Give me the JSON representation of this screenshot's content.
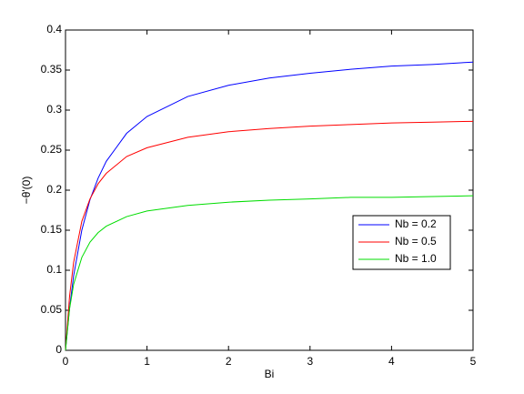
{
  "chart_data": {
    "type": "line",
    "x_label": "Bi",
    "y_label": "−θ'(0)",
    "x": [
      0,
      0.05,
      0.1,
      0.2,
      0.3,
      0.4,
      0.5,
      0.75,
      1,
      1.5,
      2,
      2.5,
      3,
      3.5,
      4,
      4.5,
      5
    ],
    "series": [
      {
        "name": "Nb = 0.2",
        "color": "#0000ff",
        "values": [
          0,
          0.0532,
          0.0934,
          0.15,
          0.188,
          0.215,
          0.236,
          0.271,
          0.292,
          0.317,
          0.331,
          0.34,
          0.346,
          0.351,
          0.355,
          0.357,
          0.36
        ]
      },
      {
        "name": "Nb = 0.5",
        "color": "#ff0000",
        "values": [
          0,
          0.0678,
          0.11,
          0.161,
          0.189,
          0.208,
          0.221,
          0.242,
          0.253,
          0.266,
          0.273,
          0.277,
          0.28,
          0.282,
          0.284,
          0.285,
          0.286
        ]
      },
      {
        "name": "Nb = 1.0",
        "color": "#00dd00",
        "values": [
          0,
          0.052,
          0.0825,
          0.116,
          0.135,
          0.147,
          0.155,
          0.167,
          0.174,
          0.181,
          0.185,
          0.1875,
          0.189,
          0.191,
          0.191,
          0.192,
          0.193
        ]
      }
    ],
    "xlim": [
      0,
      5
    ],
    "xticks": [
      0,
      1,
      2,
      3,
      4,
      5
    ],
    "ylim": [
      0,
      0.4
    ],
    "yticks": [
      0,
      0.05,
      0.1,
      0.15,
      0.2,
      0.25,
      0.3,
      0.35,
      0.4
    ],
    "grid": false,
    "legend_position": "right"
  }
}
